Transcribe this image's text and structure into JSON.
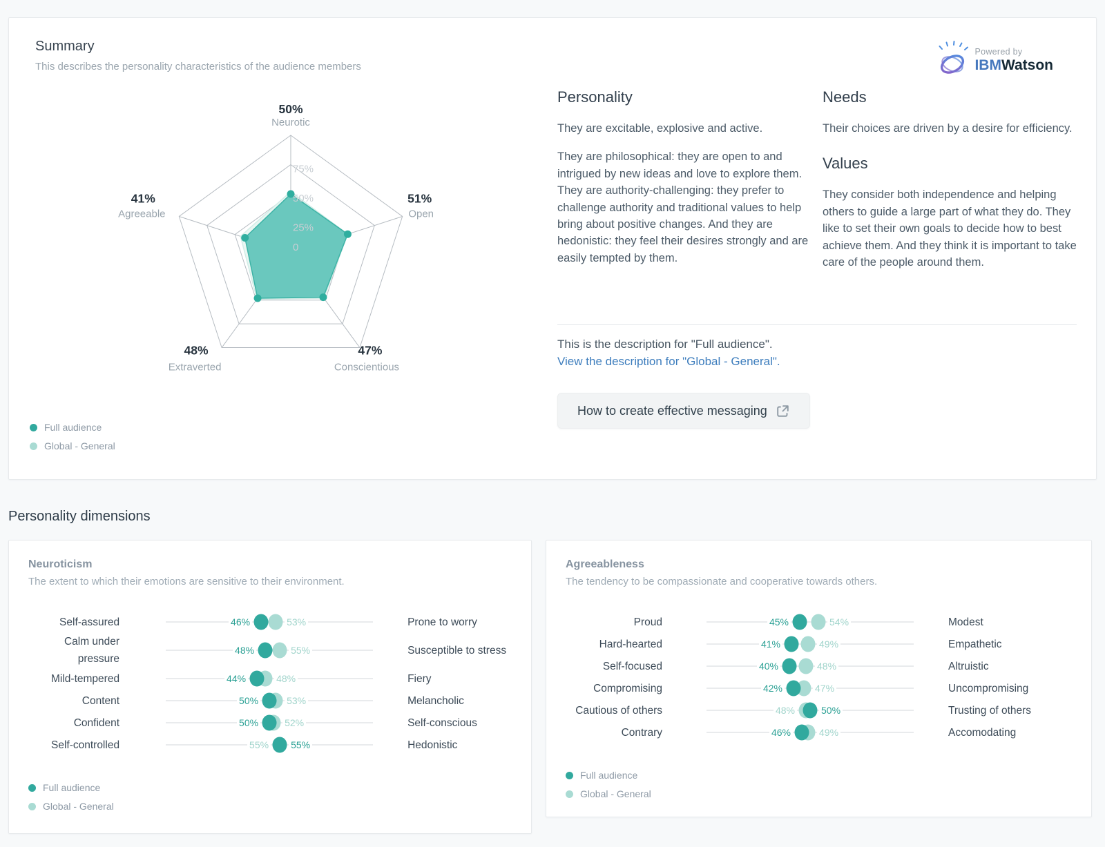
{
  "summary": {
    "title": "Summary",
    "subtitle": "This describes the personality characteristics of the audience members",
    "watson": {
      "powered_by": "Powered by",
      "ibm": "IBM",
      "watson": "Watson"
    }
  },
  "personality": {
    "heading": "Personality",
    "paragraphs": [
      "They are excitable, explosive and active.",
      "They are philosophical: they are open to and intrigued by new ideas and love to explore them. They are authority-challenging: they prefer to challenge authority and traditional values to help bring about positive changes. And they are hedonistic: they feel their desires strongly and are easily tempted by them."
    ]
  },
  "needs": {
    "heading": "Needs",
    "text": "Their choices are driven by a desire for efficiency."
  },
  "values": {
    "heading": "Values",
    "text": "They consider both independence and helping others to guide a large part of what they do. They like to set their own goals to decide how to best achieve them. And they think it is important to take care of the people around them."
  },
  "description_note": {
    "line": "This is the description for \"Full audience\".",
    "link": "View the description for \"Global - General\"."
  },
  "messaging_button": {
    "label": "How to create effective messaging"
  },
  "dimensions_heading": "Personality dimensions",
  "legend": {
    "series": [
      {
        "name": "Full audience",
        "color": "#31a99e"
      },
      {
        "name": "Global - General",
        "color": "#a9dbd3"
      }
    ]
  },
  "colors": {
    "accent_dark": "#31a99e",
    "accent_light": "#a9dbd3",
    "radar_fill_dark": "#58c2b6",
    "radar_fill_light": "#e9f6f2",
    "radar_stroke_light": "#d2ede7",
    "grid": "#b6bcc2",
    "tick_text": "#c8ced3",
    "value_text_dark": "#2aa094",
    "value_text_light": "#a0d4cb",
    "link": "#3d7dbd"
  },
  "chart_data": [
    {
      "type": "radar",
      "axes": [
        "Neurotic",
        "Open",
        "Conscientious",
        "Extraverted",
        "Agreeable"
      ],
      "axis_value_labels": [
        "50%",
        "51%",
        "47%",
        "48%",
        "41%"
      ],
      "ring_tick_labels": [
        "75%",
        "50%",
        "25%",
        "0"
      ],
      "rmax": 100,
      "legend_position": "bottom-left",
      "series": [
        {
          "name": "Full audience",
          "values": [
            50,
            51,
            47,
            48,
            41
          ]
        },
        {
          "name": "Global - General",
          "values": [
            52,
            51,
            48,
            49,
            45
          ]
        }
      ]
    },
    {
      "type": "dotplot",
      "title": "Neuroticism",
      "subtitle": "The extent to which their emotions are sensitive to their environment.",
      "xlim": [
        0,
        100
      ],
      "series_names": [
        "Full audience",
        "Global - General"
      ],
      "rows": [
        {
          "left_label": "Self-assured",
          "right_label": "Prone to worry",
          "full_audience": 46,
          "global_general": 53
        },
        {
          "left_label": "Calm under pressure",
          "right_label": "Susceptible to stress",
          "full_audience": 48,
          "global_general": 55
        },
        {
          "left_label": "Mild-tempered",
          "right_label": "Fiery",
          "full_audience": 44,
          "global_general": 48
        },
        {
          "left_label": "Content",
          "right_label": "Melancholic",
          "full_audience": 50,
          "global_general": 53
        },
        {
          "left_label": "Confident",
          "right_label": "Self-conscious",
          "full_audience": 50,
          "global_general": 52
        },
        {
          "left_label": "Self-controlled",
          "right_label": "Hedonistic",
          "full_audience": 55,
          "global_general": 55
        }
      ]
    },
    {
      "type": "dotplot",
      "title": "Agreeableness",
      "subtitle": "The tendency to be compassionate and cooperative towards others.",
      "xlim": [
        0,
        100
      ],
      "series_names": [
        "Full audience",
        "Global - General"
      ],
      "rows": [
        {
          "left_label": "Proud",
          "right_label": "Modest",
          "full_audience": 45,
          "global_general": 54
        },
        {
          "left_label": "Hard-hearted",
          "right_label": "Empathetic",
          "full_audience": 41,
          "global_general": 49
        },
        {
          "left_label": "Self-focused",
          "right_label": "Altruistic",
          "full_audience": 40,
          "global_general": 48
        },
        {
          "left_label": "Compromising",
          "right_label": "Uncompromising",
          "full_audience": 42,
          "global_general": 47
        },
        {
          "left_label": "Cautious of others",
          "right_label": "Trusting of others",
          "full_audience": 50,
          "global_general": 48
        },
        {
          "left_label": "Contrary",
          "right_label": "Accomodating",
          "full_audience": 46,
          "global_general": 49
        }
      ]
    }
  ]
}
